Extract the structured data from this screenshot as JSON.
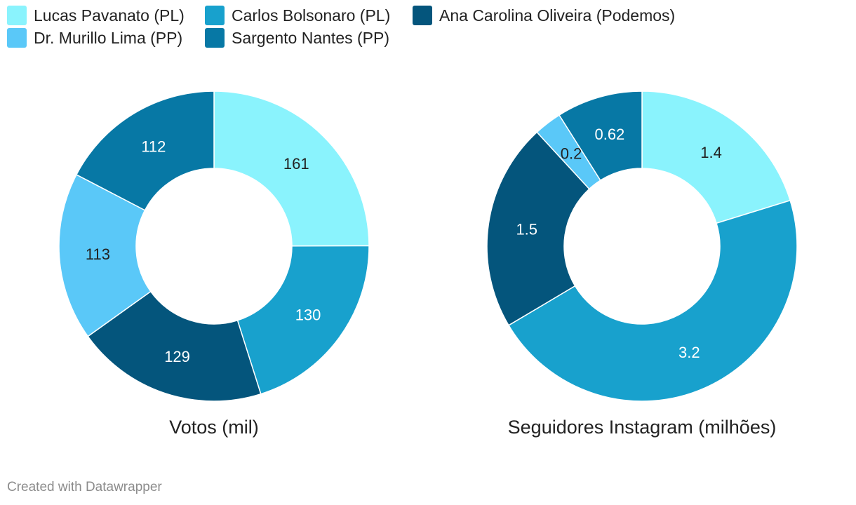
{
  "legend": [
    {
      "label": "Lucas Pavanato (PL)",
      "color": "#8af3fd"
    },
    {
      "label": "Carlos Bolsonaro (PL)",
      "color": "#18a1cd"
    },
    {
      "label": "Ana Carolina Oliveira (Podemos)",
      "color": "#04557c"
    },
    {
      "label": "Dr. Murillo Lima (PP)",
      "color": "#5ac8f8"
    },
    {
      "label": "Sargento Nantes (PP)",
      "color": "#0778a5"
    }
  ],
  "chart_data": [
    {
      "type": "pie",
      "title": "Votos (mil)",
      "categories": [
        "Lucas Pavanato (PL)",
        "Carlos Bolsonaro (PL)",
        "Ana Carolina Oliveira (Podemos)",
        "Dr. Murillo Lima (PP)",
        "Sargento Nantes (PP)"
      ],
      "values": [
        161,
        130,
        129,
        113,
        112
      ],
      "labels": [
        "161",
        "130",
        "129",
        "113",
        "112"
      ],
      "colors": [
        "#8af3fd",
        "#18a1cd",
        "#04557c",
        "#5ac8f8",
        "#0778a5"
      ],
      "label_colors": [
        "#222222",
        "#ffffff",
        "#ffffff",
        "#222222",
        "#ffffff"
      ],
      "donut": true
    },
    {
      "type": "pie",
      "title": "Seguidores Instagram (milhões)",
      "categories": [
        "Lucas Pavanato (PL)",
        "Carlos Bolsonaro (PL)",
        "Ana Carolina Oliveira (Podemos)",
        "Dr. Murillo Lima (PP)",
        "Sargento Nantes (PP)"
      ],
      "values": [
        1.4,
        3.2,
        1.5,
        0.2,
        0.62
      ],
      "labels": [
        "1.4",
        "3.2",
        "1.5",
        "0.2",
        "0.62"
      ],
      "colors": [
        "#8af3fd",
        "#18a1cd",
        "#04557c",
        "#5ac8f8",
        "#0778a5"
      ],
      "label_colors": [
        "#222222",
        "#ffffff",
        "#ffffff",
        "#222222",
        "#ffffff"
      ],
      "donut": true
    }
  ],
  "footer": "Created with Datawrapper"
}
